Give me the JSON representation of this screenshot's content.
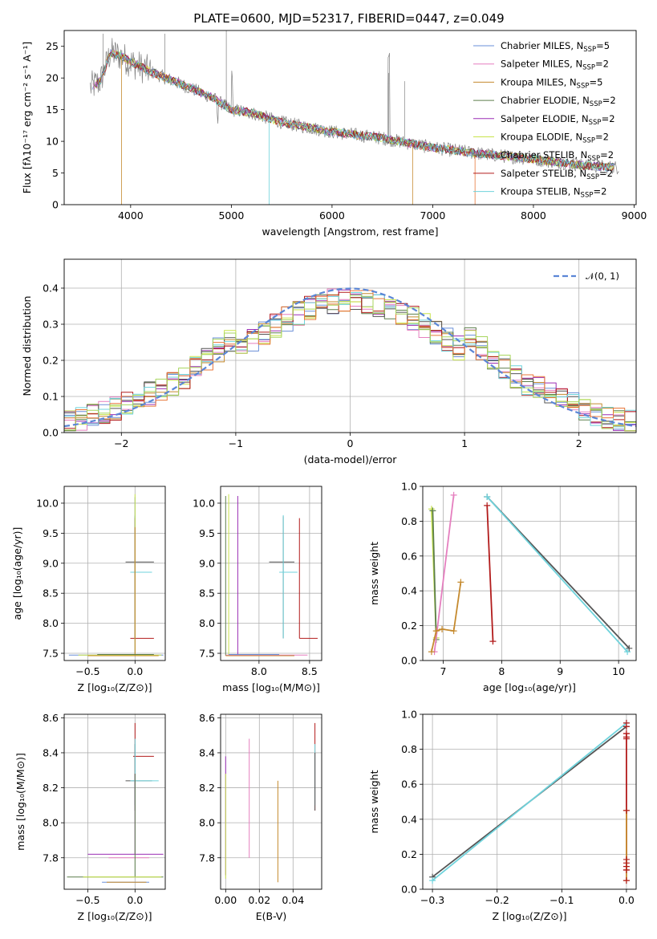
{
  "figure": {
    "title": "PLATE=0600, MJD=52317, FIBERID=0447, z=0.049"
  },
  "colors": {
    "Chabrier MILES": "#6a8fd8",
    "Salpeter MILES": "#e57fbf",
    "Kroupa MILES": "#c58a2e",
    "Chabrier ELODIE": "#5d7f4c",
    "Salpeter ELODIE": "#9b2fb5",
    "Kroupa ELODIE": "#c8e34a",
    "Chabrier STELIB": "#555555",
    "Salpeter STELIB": "#b21b1b",
    "Kroupa STELIB": "#6fd3dc",
    "data": "#808080",
    "orange": "#e8773a",
    "lime": "#a8d65e"
  },
  "chart_data": [
    {
      "id": "spectrum",
      "type": "line",
      "xlabel": "wavelength [Angstrom, rest frame]",
      "ylabel": "Flux [fλ10⁻¹⁷ erg cm⁻² s⁻¹ A⁻¹]",
      "xlim": [
        3340,
        9020
      ],
      "ylim": [
        0,
        27.5
      ],
      "xticks": [
        4000,
        5000,
        6000,
        7000,
        8000,
        9000
      ],
      "yticks": [
        0,
        5,
        10,
        15,
        20,
        25
      ],
      "legend_position": "top-right",
      "legend": [
        {
          "name": "Chabrier MILES",
          "nssp": "5"
        },
        {
          "name": "Salpeter MILES",
          "nssp": "2"
        },
        {
          "name": "Kroupa MILES",
          "nssp": "5"
        },
        {
          "name": "Chabrier ELODIE",
          "nssp": "2"
        },
        {
          "name": "Salpeter ELODIE",
          "nssp": "2"
        },
        {
          "name": "Kroupa ELODIE",
          "nssp": "2"
        },
        {
          "name": "Chabrier STELIB",
          "nssp": "2"
        },
        {
          "name": "Salpeter STELIB",
          "nssp": "2"
        },
        {
          "name": "Kroupa STELIB",
          "nssp": "2"
        }
      ],
      "continuum": [
        [
          3600,
          18.5
        ],
        [
          3700,
          19.5
        ],
        [
          3800,
          24
        ],
        [
          3900,
          23.5
        ],
        [
          4000,
          22.5
        ],
        [
          4200,
          21
        ],
        [
          4500,
          19
        ],
        [
          4800,
          17
        ],
        [
          5000,
          15
        ],
        [
          5200,
          14.5
        ],
        [
          5500,
          13
        ],
        [
          6000,
          11.5
        ],
        [
          6500,
          10.5
        ],
        [
          7000,
          9
        ],
        [
          7500,
          8
        ],
        [
          8000,
          7.2
        ],
        [
          8500,
          6.2
        ],
        [
          8800,
          5.9
        ]
      ]
    },
    {
      "id": "residuals",
      "type": "histogram",
      "xlabel": "(data-model)/error",
      "ylabel": "Normed distribution",
      "xlim": [
        -2.5,
        2.5
      ],
      "ylim": [
        0,
        0.48
      ],
      "xticks": [
        -2,
        -1,
        0,
        1,
        2
      ],
      "yticks": [
        0.0,
        0.1,
        0.2,
        0.3,
        0.4
      ],
      "grid": true,
      "legend_position": "top-right",
      "legend": [
        "𝒩(0, 1)"
      ],
      "bin_width": 0.1
    },
    {
      "id": "age_vs_Z",
      "type": "errorbar",
      "xlabel": "Z [log₁₀(Z/Z⊙)]",
      "ylabel": "age  [log₁₀(age/yr)]",
      "xlim": [
        -0.75,
        0.32
      ],
      "ylim": [
        7.38,
        10.28
      ],
      "xticks": [
        -0.5,
        0.0
      ],
      "yticks": [
        7.5,
        8.0,
        8.5,
        9.0,
        9.5,
        10.0
      ],
      "grid": true
    },
    {
      "id": "age_vs_mass",
      "type": "errorbar",
      "xlabel": "mass [log₁₀(M/M⊙)]",
      "ylabel": "",
      "xlim": [
        7.62,
        8.62
      ],
      "ylim": [
        7.38,
        10.28
      ],
      "xticks": [
        8.0,
        8.5
      ],
      "yticks": [
        7.5,
        8.0,
        8.5,
        9.0,
        9.5,
        10.0
      ],
      "grid": true
    },
    {
      "id": "weight_vs_age",
      "type": "line",
      "xlabel": "age  [log₁₀(age/yr)]",
      "ylabel": "mass weight",
      "xlim": [
        6.65,
        10.3
      ],
      "ylim": [
        0,
        1.0
      ],
      "xticks": [
        7,
        8,
        9,
        10
      ],
      "yticks": [
        0.0,
        0.2,
        0.4,
        0.6,
        0.8,
        1.0
      ],
      "grid": true,
      "series": [
        {
          "name": "Kroupa ELODIE",
          "points": [
            [
              6.8,
              0.87
            ],
            [
              6.88,
              0.13
            ]
          ]
        },
        {
          "name": "Chabrier ELODIE",
          "points": [
            [
              6.82,
              0.86
            ],
            [
              6.88,
              0.12
            ]
          ]
        },
        {
          "name": "Salpeter MILES",
          "points": [
            [
              6.85,
              0.05
            ],
            [
              7.18,
              0.95
            ]
          ]
        },
        {
          "name": "Kroupa MILES",
          "points": [
            [
              6.8,
              0.05
            ],
            [
              6.88,
              0.17
            ],
            [
              6.98,
              0.18
            ],
            [
              7.18,
              0.17
            ],
            [
              7.3,
              0.45
            ]
          ]
        },
        {
          "name": "Salpeter STELIB",
          "points": [
            [
              7.75,
              0.89
            ],
            [
              7.85,
              0.11
            ]
          ]
        },
        {
          "name": "Chabrier STELIB",
          "points": [
            [
              7.75,
              0.94
            ],
            [
              10.18,
              0.07
            ]
          ]
        },
        {
          "name": "Kroupa STELIB",
          "points": [
            [
              7.75,
              0.94
            ],
            [
              10.15,
              0.05
            ]
          ]
        }
      ]
    },
    {
      "id": "mass_vs_Z",
      "type": "errorbar",
      "xlabel": "Z [log₁₀(Z/Z⊙)]",
      "ylabel": "mass [log₁₀(M/M⊙)]",
      "xlim": [
        -0.75,
        0.32
      ],
      "ylim": [
        7.62,
        8.62
      ],
      "xticks": [
        -0.5,
        0.0
      ],
      "yticks": [
        7.8,
        8.0,
        8.2,
        8.4,
        8.6
      ],
      "grid": true
    },
    {
      "id": "mass_vs_ebv",
      "type": "errorbar",
      "xlabel": "E(B-V)",
      "ylabel": "",
      "xlim": [
        -0.003,
        0.057
      ],
      "ylim": [
        7.62,
        8.62
      ],
      "xticks": [
        0.0,
        0.02,
        0.04
      ],
      "yticks": [
        7.8,
        8.0,
        8.2,
        8.4,
        8.6
      ],
      "grid": true
    },
    {
      "id": "weight_vs_Z",
      "type": "line",
      "xlabel": "Z [log₁₀(Z/Z⊙)]",
      "ylabel": "mass weight",
      "xlim": [
        -0.315,
        0.015
      ],
      "ylim": [
        0,
        1.0
      ],
      "xticks": [
        -0.3,
        -0.2,
        -0.1,
        0.0
      ],
      "yticks": [
        0.0,
        0.2,
        0.4,
        0.6,
        0.8,
        1.0
      ],
      "grid": true,
      "series": [
        {
          "name": "Chabrier STELIB",
          "points": [
            [
              -0.3,
              0.07
            ],
            [
              0.0,
              0.93
            ]
          ]
        },
        {
          "name": "Kroupa STELIB",
          "points": [
            [
              -0.3,
              0.05
            ],
            [
              0.0,
              0.95
            ]
          ]
        },
        {
          "name": "Salpeter STELIB",
          "points": [
            [
              0.0,
              0.89
            ],
            [
              0.0,
              0.11
            ]
          ]
        },
        {
          "name": "Kroupa MILES",
          "points": [
            [
              0.0,
              0.05
            ],
            [
              0.0,
              0.45
            ]
          ]
        }
      ],
      "markers_at_zero": [
        0.05,
        0.11,
        0.13,
        0.15,
        0.17,
        0.45,
        0.86,
        0.87,
        0.89,
        0.93,
        0.95
      ]
    }
  ]
}
